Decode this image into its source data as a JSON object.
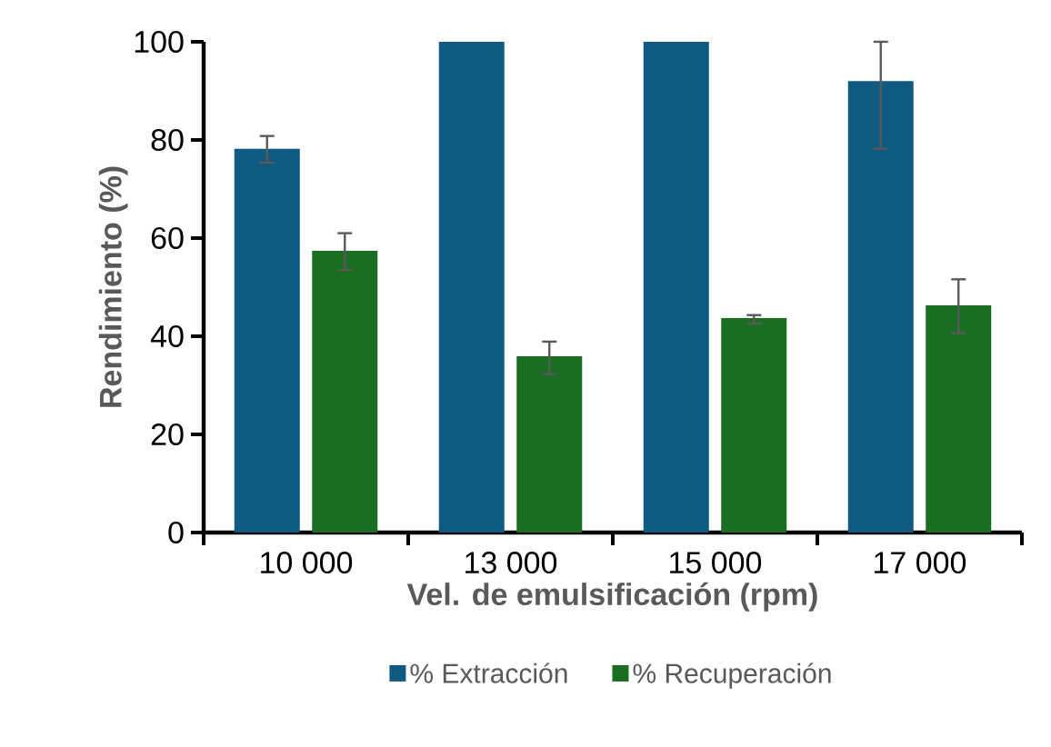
{
  "chart_data": {
    "type": "bar",
    "xlabel": "Vel. de emulsificación (rpm)",
    "ylabel": "Rendimiento (%)",
    "categories": [
      "10 000",
      "13 000",
      "15 000",
      "17 000"
    ],
    "series": [
      {
        "name": "% Extracción",
        "color": "#0e5a80",
        "values": [
          78.2,
          100,
          100,
          92.0
        ],
        "errors": [
          [
            75.4,
            80.8
          ],
          null,
          null,
          [
            78.2,
            100
          ]
        ]
      },
      {
        "name": "% Recuperación",
        "color": "#1a6e22",
        "values": [
          57.4,
          35.9,
          43.7,
          46.3
        ],
        "errors": [
          [
            53.5,
            61.0
          ],
          [
            32.3,
            38.9
          ],
          [
            42.6,
            44.3
          ],
          [
            40.6,
            51.6
          ]
        ]
      }
    ],
    "ylim": [
      0,
      100
    ],
    "yticks": [
      0,
      20,
      40,
      60,
      80,
      100
    ],
    "grid": false,
    "legend": "bottom"
  }
}
